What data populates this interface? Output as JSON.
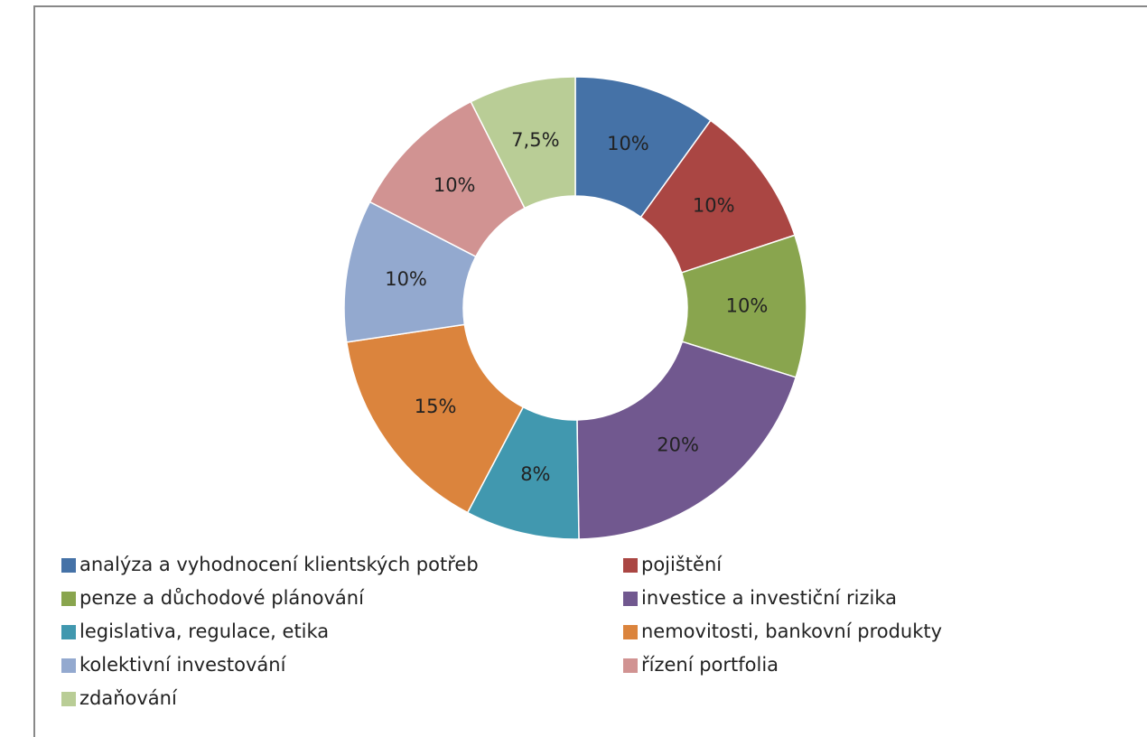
{
  "chart_data": {
    "type": "donut",
    "categories": [
      "analýza a vyhodnocení klientských potřeb",
      "pojištění",
      "penze a důchodové plánování",
      "investice a investiční rizika",
      "legislativa, regulace, etika",
      "nemovitosti, bankovní produkty",
      "kolektivní investování",
      "řízení portfolia",
      "zdaňování"
    ],
    "values": [
      10,
      10,
      10,
      20,
      8,
      15,
      10,
      10,
      7.5
    ],
    "value_labels": [
      "10%",
      "10%",
      "10%",
      "20%",
      "8%",
      "15%",
      "10%",
      "10%",
      "7,5%"
    ],
    "colors": [
      "#4572a7",
      "#aa4643",
      "#89a54e",
      "#71588f",
      "#4198af",
      "#db843d",
      "#93a9cf",
      "#d19392",
      "#b9cd96"
    ],
    "legend": "bottom"
  }
}
